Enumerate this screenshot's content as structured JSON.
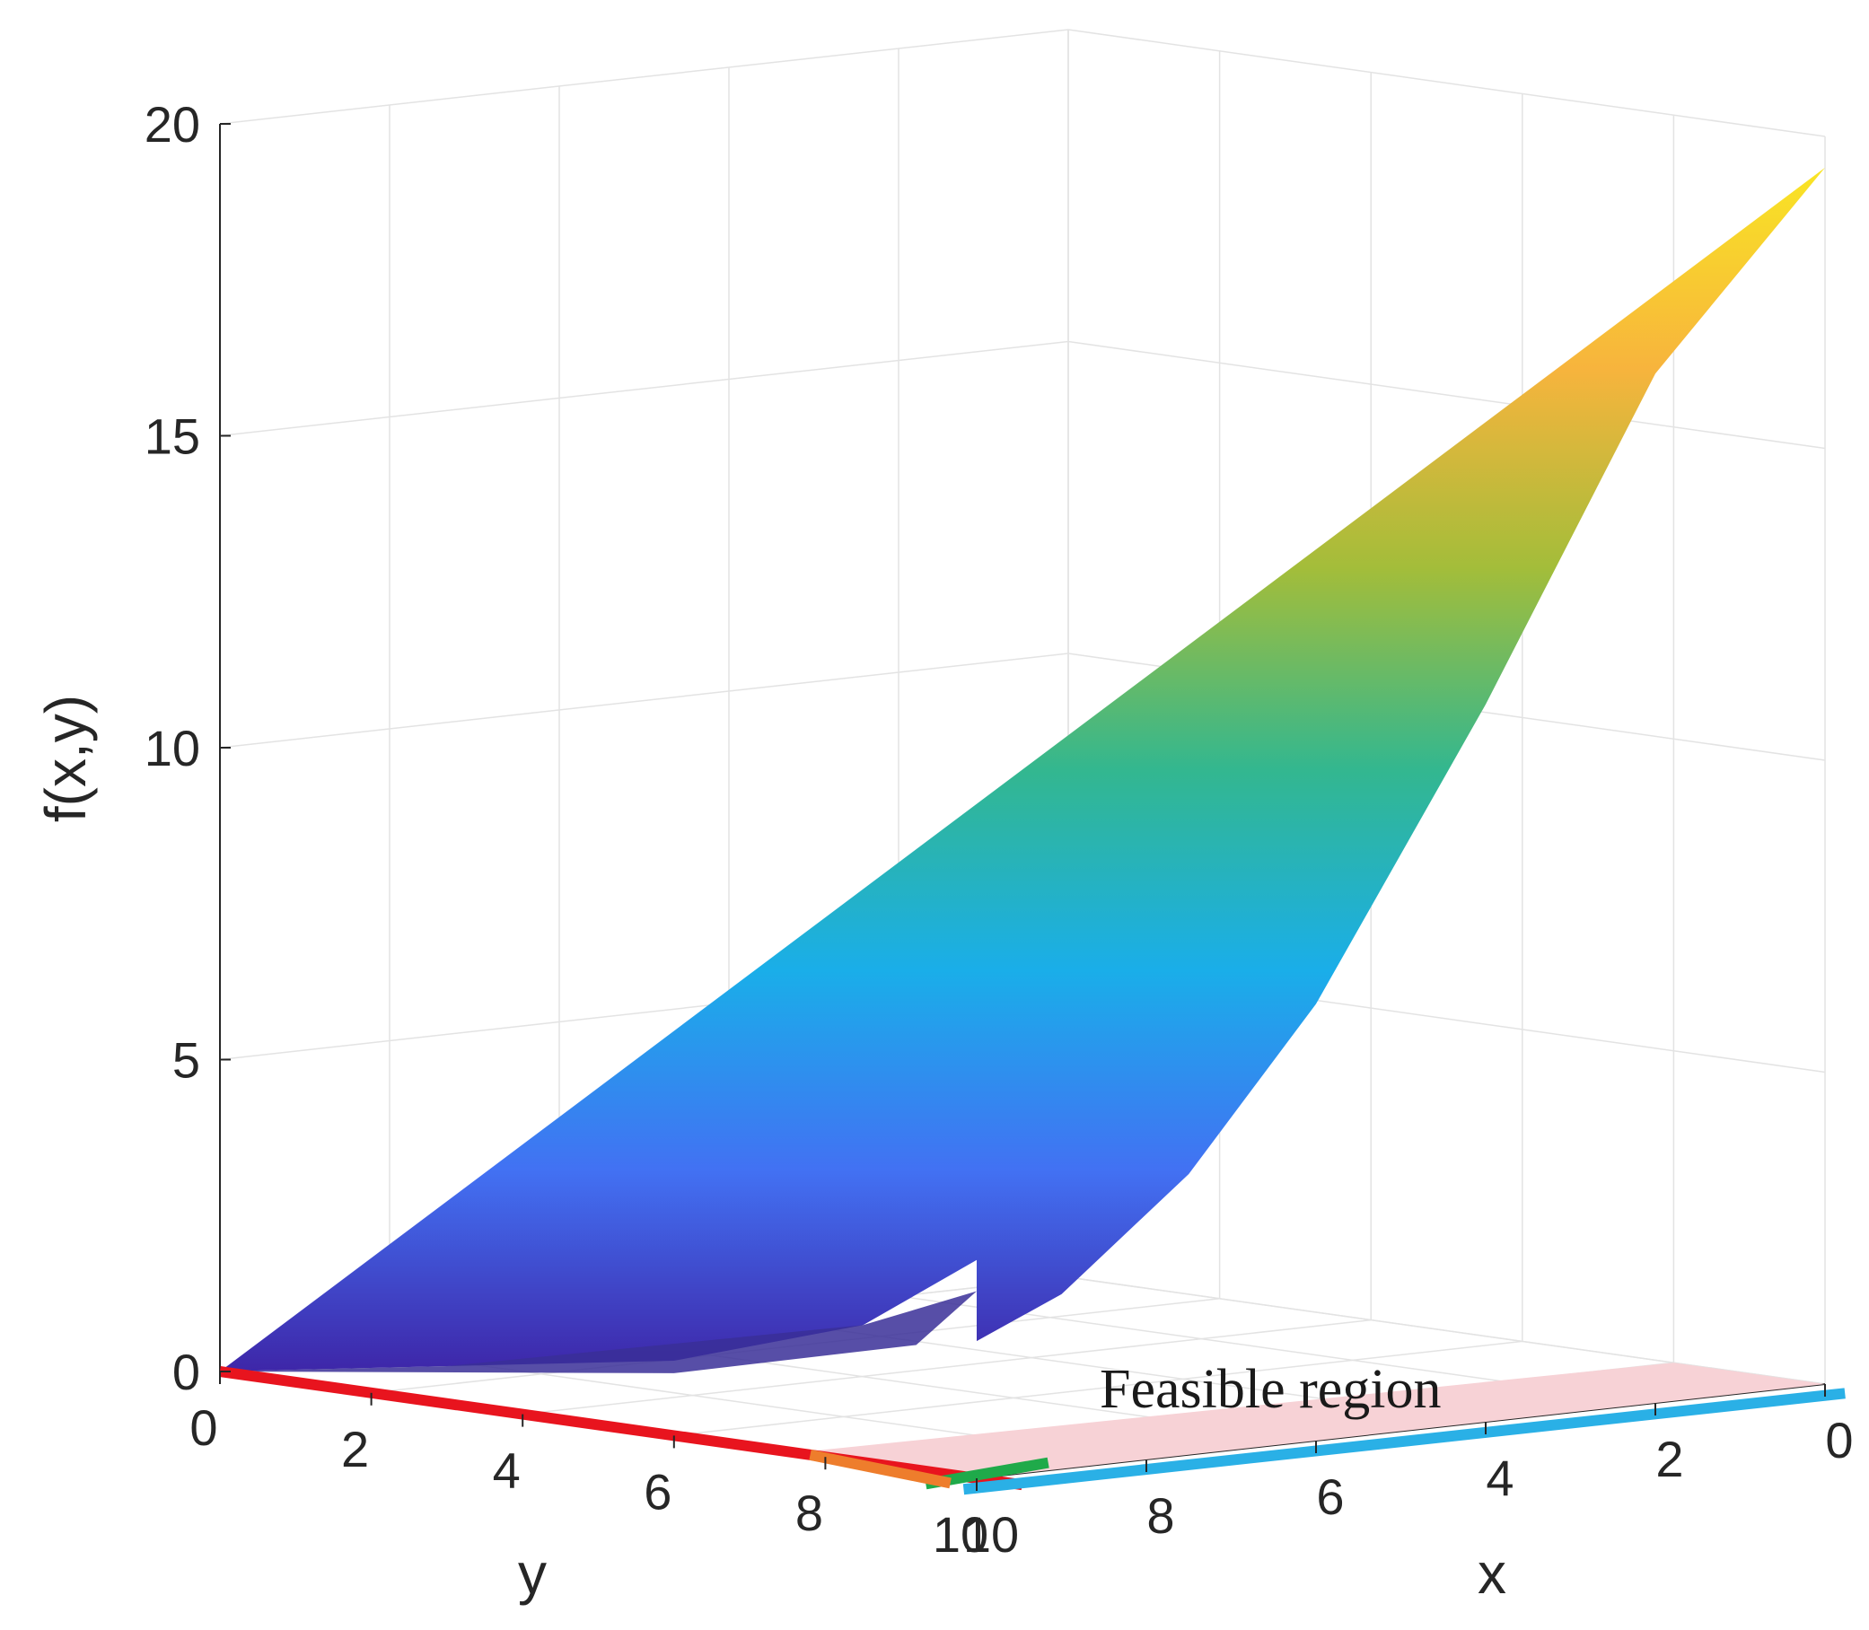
{
  "chart_data": {
    "type": "surface",
    "title": "",
    "xlabel": "x",
    "ylabel": "y",
    "zlabel": "f(x,y)",
    "xlim": [
      0,
      10
    ],
    "ylim": [
      0,
      10
    ],
    "zlim": [
      0,
      20
    ],
    "x_ticks": [
      "0",
      "2",
      "4",
      "6",
      "8",
      "10"
    ],
    "y_ticks": [
      "0",
      "2",
      "4",
      "6",
      "8",
      "10"
    ],
    "z_ticks": [
      "0",
      "5",
      "10",
      "15",
      "20"
    ],
    "grid": true,
    "colormap": [
      "#3e26a8",
      "#4271f3",
      "#1aaee9",
      "#33b78f",
      "#a3bd3a",
      "#f7b43d",
      "#f9e524"
    ],
    "surface": {
      "x_edge": [
        {
          "x": 0.0,
          "z": 19.5
        },
        {
          "x": 2.0,
          "z": 16.5
        },
        {
          "x": 4.0,
          "z": 11.5
        },
        {
          "x": 6.0,
          "z": 7.0
        },
        {
          "x": 7.5,
          "z": 4.5
        },
        {
          "x": 9.0,
          "z": 2.8
        },
        {
          "x": 10.0,
          "z": 2.2
        }
      ],
      "y_edge": [
        {
          "y": 0.0,
          "z": 0.0
        },
        {
          "y": 3.0,
          "z": 0.6
        },
        {
          "y": 6.0,
          "z": 1.2
        },
        {
          "y": 8.5,
          "z": 2.2
        },
        {
          "y": 10.0,
          "z": 3.5
        },
        {
          "y": 10.0,
          "z": 5.0
        },
        {
          "y": 10.0,
          "z": 20.0
        }
      ]
    },
    "constraint_lines": [
      {
        "color": "#e8141e",
        "from": {
          "x": 10.0,
          "y": 0.0
        },
        "to": {
          "x": 10.0,
          "y": 10.6
        }
      },
      {
        "color": "#1faa4a",
        "from": {
          "x": 10.6,
          "y": 10.0
        },
        "to": {
          "x": 8.8,
          "y": 9.6
        }
      },
      {
        "color": "#ee7d2c",
        "from": {
          "x": 10.4,
          "y": 10.1
        },
        "to": {
          "x": 10.0,
          "y": 7.8
        }
      },
      {
        "color": "#2ab0e6",
        "from": {
          "x": 10.6,
          "y": 10.5
        },
        "to": {
          "x": 0.3,
          "y": 10.6
        }
      }
    ],
    "feasible_region": {
      "color": "#f7d2d6",
      "vertices": [
        {
          "x": 10.0,
          "y": 10.0
        },
        {
          "x": 0.0,
          "y": 10.0
        },
        {
          "x": 0.0,
          "y": 8.0
        },
        {
          "x": 10.0,
          "y": 7.6
        }
      ]
    },
    "annotations": [
      {
        "text": "Feasible region",
        "x": 5.0,
        "y": 9.6
      }
    ]
  }
}
